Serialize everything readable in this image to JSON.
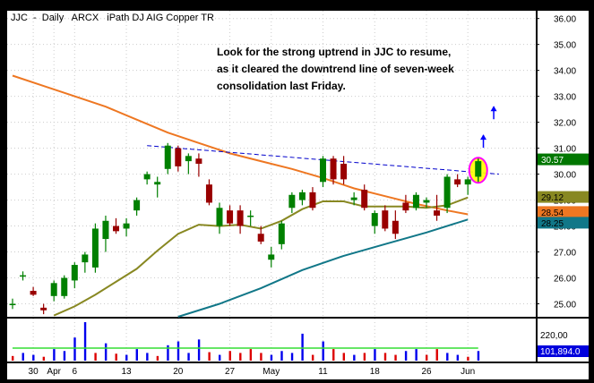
{
  "header": {
    "symbol": "JJC",
    "sep1": "-",
    "period": "Daily",
    "exchange": "ARCX",
    "description": "iPath DJ AIG Copper TR"
  },
  "annotation": {
    "lines": [
      "Look for the strong uptrend in JJC to resume,",
      "as it cleared the downtrend line of seven-week",
      "consolidation last Friday."
    ]
  },
  "colors": {
    "up": "#008000",
    "down": "#990000",
    "ma_orange": "#ee7722",
    "ma_olive": "#888822",
    "ma_teal": "#117788",
    "trendline": "#0000cc",
    "highlight": "#ff00ff",
    "arrow": "#0000ff",
    "volume_blue": "#0000ee",
    "volume_red": "#dd0000",
    "volume_avg": "#33dd33"
  },
  "chart_data": {
    "type": "candlestick",
    "y_axis": {
      "min": 24.5,
      "max": 36.3,
      "ticks": [
        "25.00",
        "26.00",
        "27.00",
        "28.00",
        "29.00",
        "30.00",
        "31.00",
        "32.00",
        "33.00",
        "34.00",
        "35.00",
        "36.00"
      ]
    },
    "x_axis": {
      "labels": [
        {
          "label": "30",
          "index": 2
        },
        {
          "label": "Apr",
          "index": 4
        },
        {
          "label": "6",
          "index": 6
        },
        {
          "label": "13",
          "index": 11
        },
        {
          "label": "20",
          "index": 16
        },
        {
          "label": "27",
          "index": 21
        },
        {
          "label": "May",
          "index": 25
        },
        {
          "label": "11",
          "index": 30
        },
        {
          "label": "18",
          "index": 35
        },
        {
          "label": "26",
          "index": 40
        },
        {
          "label": "Jun",
          "index": 44
        }
      ]
    },
    "candles": [
      {
        "o": 24.95,
        "h": 25.2,
        "l": 24.8,
        "c": 25.0
      },
      {
        "o": 26.05,
        "h": 26.25,
        "l": 25.9,
        "c": 26.1
      },
      {
        "o": 25.5,
        "h": 25.65,
        "l": 25.3,
        "c": 25.35
      },
      {
        "o": 24.85,
        "h": 25.0,
        "l": 24.6,
        "c": 24.75
      },
      {
        "o": 25.3,
        "h": 25.9,
        "l": 25.1,
        "c": 25.8
      },
      {
        "o": 25.3,
        "h": 26.1,
        "l": 25.2,
        "c": 26.0
      },
      {
        "o": 25.9,
        "h": 26.6,
        "l": 25.6,
        "c": 26.5
      },
      {
        "o": 26.6,
        "h": 27.0,
        "l": 26.2,
        "c": 26.9
      },
      {
        "o": 26.4,
        "h": 28.1,
        "l": 26.2,
        "c": 27.9
      },
      {
        "o": 27.5,
        "h": 28.4,
        "l": 27.0,
        "c": 28.2
      },
      {
        "o": 28.0,
        "h": 28.3,
        "l": 27.7,
        "c": 27.8
      },
      {
        "o": 27.9,
        "h": 28.3,
        "l": 27.6,
        "c": 28.1
      },
      {
        "o": 28.6,
        "h": 29.1,
        "l": 28.4,
        "c": 29.0
      },
      {
        "o": 29.8,
        "h": 30.1,
        "l": 29.6,
        "c": 30.0
      },
      {
        "o": 29.6,
        "h": 29.9,
        "l": 29.1,
        "c": 29.7
      },
      {
        "o": 30.2,
        "h": 31.2,
        "l": 30.0,
        "c": 31.1
      },
      {
        "o": 31.0,
        "h": 31.1,
        "l": 30.1,
        "c": 30.3
      },
      {
        "o": 30.5,
        "h": 30.8,
        "l": 30.0,
        "c": 30.7
      },
      {
        "o": 30.6,
        "h": 30.8,
        "l": 29.9,
        "c": 30.4
      },
      {
        "o": 29.6,
        "h": 29.8,
        "l": 28.8,
        "c": 28.9
      },
      {
        "o": 28.0,
        "h": 28.9,
        "l": 27.7,
        "c": 28.7
      },
      {
        "o": 28.6,
        "h": 28.8,
        "l": 28.0,
        "c": 28.1
      },
      {
        "o": 28.6,
        "h": 28.8,
        "l": 27.7,
        "c": 28.0
      },
      {
        "o": 28.4,
        "h": 28.6,
        "l": 28.0,
        "c": 28.4
      },
      {
        "o": 27.7,
        "h": 28.0,
        "l": 27.3,
        "c": 27.4
      },
      {
        "o": 26.7,
        "h": 27.2,
        "l": 26.4,
        "c": 26.9
      },
      {
        "o": 27.3,
        "h": 28.2,
        "l": 27.1,
        "c": 28.1
      },
      {
        "o": 28.7,
        "h": 29.3,
        "l": 28.5,
        "c": 29.2
      },
      {
        "o": 29.0,
        "h": 29.4,
        "l": 28.8,
        "c": 29.3
      },
      {
        "o": 29.3,
        "h": 29.5,
        "l": 28.6,
        "c": 28.7
      },
      {
        "o": 29.7,
        "h": 30.7,
        "l": 29.5,
        "c": 30.6
      },
      {
        "o": 30.6,
        "h": 30.7,
        "l": 29.6,
        "c": 29.8
      },
      {
        "o": 30.4,
        "h": 30.7,
        "l": 29.6,
        "c": 29.8
      },
      {
        "o": 29.0,
        "h": 29.3,
        "l": 28.8,
        "c": 29.1
      },
      {
        "o": 29.4,
        "h": 29.6,
        "l": 28.6,
        "c": 28.7
      },
      {
        "o": 28.0,
        "h": 28.6,
        "l": 27.7,
        "c": 28.5
      },
      {
        "o": 28.6,
        "h": 28.8,
        "l": 27.8,
        "c": 27.9
      },
      {
        "o": 28.2,
        "h": 28.6,
        "l": 27.5,
        "c": 27.7
      },
      {
        "o": 28.9,
        "h": 29.2,
        "l": 28.5,
        "c": 28.6
      },
      {
        "o": 28.7,
        "h": 29.3,
        "l": 28.6,
        "c": 29.2
      },
      {
        "o": 28.9,
        "h": 29.1,
        "l": 28.7,
        "c": 29.0
      },
      {
        "o": 28.6,
        "h": 29.2,
        "l": 28.2,
        "c": 28.4
      },
      {
        "o": 28.7,
        "h": 30.0,
        "l": 28.5,
        "c": 29.9
      },
      {
        "o": 29.8,
        "h": 30.0,
        "l": 29.5,
        "c": 29.6
      },
      {
        "o": 29.6,
        "h": 29.9,
        "l": 29.2,
        "c": 29.8
      },
      {
        "o": 29.9,
        "h": 30.6,
        "l": 29.7,
        "c": 30.5
      }
    ],
    "volume": {
      "scale_label": "220,00",
      "last_value_label": "101,894.0",
      "bars": [
        {
          "v": 0.12,
          "d": "down"
        },
        {
          "v": 0.2,
          "d": "up"
        },
        {
          "v": 0.15,
          "d": "up"
        },
        {
          "v": 0.1,
          "d": "down"
        },
        {
          "v": 0.3,
          "d": "up"
        },
        {
          "v": 0.25,
          "d": "up"
        },
        {
          "v": 0.6,
          "d": "up"
        },
        {
          "v": 1.0,
          "d": "up"
        },
        {
          "v": 0.2,
          "d": "down"
        },
        {
          "v": 0.45,
          "d": "up"
        },
        {
          "v": 0.18,
          "d": "down"
        },
        {
          "v": 0.15,
          "d": "up"
        },
        {
          "v": 0.3,
          "d": "up"
        },
        {
          "v": 0.2,
          "d": "up"
        },
        {
          "v": 0.12,
          "d": "down"
        },
        {
          "v": 0.4,
          "d": "up"
        },
        {
          "v": 0.5,
          "d": "up"
        },
        {
          "v": 0.2,
          "d": "up"
        },
        {
          "v": 0.55,
          "d": "up"
        },
        {
          "v": 0.22,
          "d": "down"
        },
        {
          "v": 0.15,
          "d": "up"
        },
        {
          "v": 0.25,
          "d": "down"
        },
        {
          "v": 0.2,
          "d": "down"
        },
        {
          "v": 0.3,
          "d": "down"
        },
        {
          "v": 0.2,
          "d": "down"
        },
        {
          "v": 0.15,
          "d": "up"
        },
        {
          "v": 0.25,
          "d": "up"
        },
        {
          "v": 0.2,
          "d": "up"
        },
        {
          "v": 0.7,
          "d": "up"
        },
        {
          "v": 0.15,
          "d": "down"
        },
        {
          "v": 0.5,
          "d": "up"
        },
        {
          "v": 0.3,
          "d": "down"
        },
        {
          "v": 0.2,
          "d": "down"
        },
        {
          "v": 0.15,
          "d": "up"
        },
        {
          "v": 0.2,
          "d": "down"
        },
        {
          "v": 0.3,
          "d": "up"
        },
        {
          "v": 0.2,
          "d": "down"
        },
        {
          "v": 0.15,
          "d": "down"
        },
        {
          "v": 0.25,
          "d": "up"
        },
        {
          "v": 0.3,
          "d": "up"
        },
        {
          "v": 0.15,
          "d": "down"
        },
        {
          "v": 0.3,
          "d": "down"
        },
        {
          "v": 0.2,
          "d": "up"
        },
        {
          "v": 0.15,
          "d": "up"
        },
        {
          "v": 0.1,
          "d": "down"
        },
        {
          "v": 0.25,
          "d": "up"
        }
      ]
    },
    "moving_averages": [
      {
        "color_key": "ma_orange",
        "points": [
          [
            0,
            33.8
          ],
          [
            3,
            33.4
          ],
          [
            6,
            33.0
          ],
          [
            9,
            32.6
          ],
          [
            12,
            32.1
          ],
          [
            15,
            31.6
          ],
          [
            18,
            31.2
          ],
          [
            21,
            30.8
          ],
          [
            24,
            30.5
          ],
          [
            27,
            30.2
          ],
          [
            30,
            29.85
          ],
          [
            33,
            29.45
          ],
          [
            36,
            29.15
          ],
          [
            39,
            28.85
          ],
          [
            42,
            28.6
          ],
          [
            44,
            28.45
          ]
        ]
      },
      {
        "color_key": "ma_olive",
        "points": [
          [
            4,
            24.55
          ],
          [
            6,
            24.9
          ],
          [
            8,
            25.35
          ],
          [
            10,
            25.85
          ],
          [
            12,
            26.35
          ],
          [
            14,
            27.05
          ],
          [
            16,
            27.7
          ],
          [
            18,
            28.05
          ],
          [
            20,
            28.0
          ],
          [
            22,
            28.05
          ],
          [
            24,
            27.9
          ],
          [
            26,
            28.2
          ],
          [
            28,
            28.65
          ],
          [
            30,
            28.95
          ],
          [
            32,
            28.95
          ],
          [
            34,
            28.75
          ],
          [
            36,
            28.75
          ],
          [
            38,
            28.75
          ],
          [
            40,
            28.7
          ],
          [
            42,
            28.8
          ],
          [
            44,
            29.1
          ]
        ]
      },
      {
        "color_key": "ma_teal",
        "points": [
          [
            16,
            24.5
          ],
          [
            20,
            25.0
          ],
          [
            24,
            25.6
          ],
          [
            28,
            26.3
          ],
          [
            32,
            26.85
          ],
          [
            36,
            27.3
          ],
          [
            40,
            27.75
          ],
          [
            44,
            28.25
          ]
        ]
      }
    ],
    "trendline": {
      "points": [
        [
          13,
          31.1
        ],
        [
          47,
          30.0
        ]
      ]
    },
    "price_labels": [
      {
        "value": 30.57,
        "label": "30.57",
        "bg": "#007700",
        "fg": "#ffffff"
      },
      {
        "value": 29.12,
        "label": "29.12",
        "bg": "#888822",
        "fg": "#000000"
      },
      {
        "value": 28.54,
        "label": "28.54",
        "bg": "#ee7722",
        "fg": "#000000"
      },
      {
        "value": 28.25,
        "label": "28.25",
        "bg": "#117788",
        "fg": "#000000"
      }
    ],
    "arrows": [
      {
        "value": 31.5,
        "index": 45.5
      },
      {
        "value": 32.6,
        "index": 46.5
      }
    ]
  }
}
